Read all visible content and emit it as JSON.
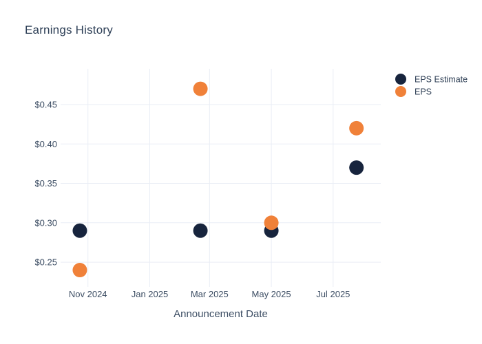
{
  "title": "Earnings History",
  "colors": {
    "background": "#ffffff",
    "title_text": "#2d3f56",
    "axis_text": "#3c4d63",
    "legend_text": "#2d3e54",
    "gridline": "#e9edf5",
    "eps_estimate": "#17243d",
    "eps": "#f08139"
  },
  "chart_data": {
    "type": "scatter",
    "title": "Earnings History",
    "xlabel": "Announcement Date",
    "ylabel": "",
    "grid": true,
    "x_tick_labels": [
      "Nov 2024",
      "Jan 2025",
      "Mar 2025",
      "May 2025",
      "Jul 2025"
    ],
    "x_tick_dates": [
      "2024-11-01",
      "2025-01-01",
      "2025-03-01",
      "2025-05-01",
      "2025-07-01"
    ],
    "x_domain": [
      "2024-10-05",
      "2025-08-17"
    ],
    "y_ticks": [
      0.25,
      0.3,
      0.35,
      0.4,
      0.45
    ],
    "y_tick_labels": [
      "$0.25",
      "$0.30",
      "$0.35",
      "$0.40",
      "$0.45"
    ],
    "ylim": [
      0.223,
      0.4954
    ],
    "legend": {
      "position": "top-right",
      "entries": [
        "EPS Estimate",
        "EPS"
      ]
    },
    "series": [
      {
        "name": "EPS Estimate",
        "color": "#17243d",
        "points": [
          {
            "x": "2024-10-24",
            "y": 0.29
          },
          {
            "x": "2025-02-20",
            "y": 0.29
          },
          {
            "x": "2025-05-01",
            "y": 0.29
          },
          {
            "x": "2025-07-24",
            "y": 0.37
          }
        ]
      },
      {
        "name": "EPS",
        "color": "#f08139",
        "points": [
          {
            "x": "2024-10-24",
            "y": 0.24
          },
          {
            "x": "2025-02-20",
            "y": 0.47
          },
          {
            "x": "2025-05-01",
            "y": 0.3
          },
          {
            "x": "2025-07-24",
            "y": 0.42
          }
        ]
      }
    ]
  }
}
